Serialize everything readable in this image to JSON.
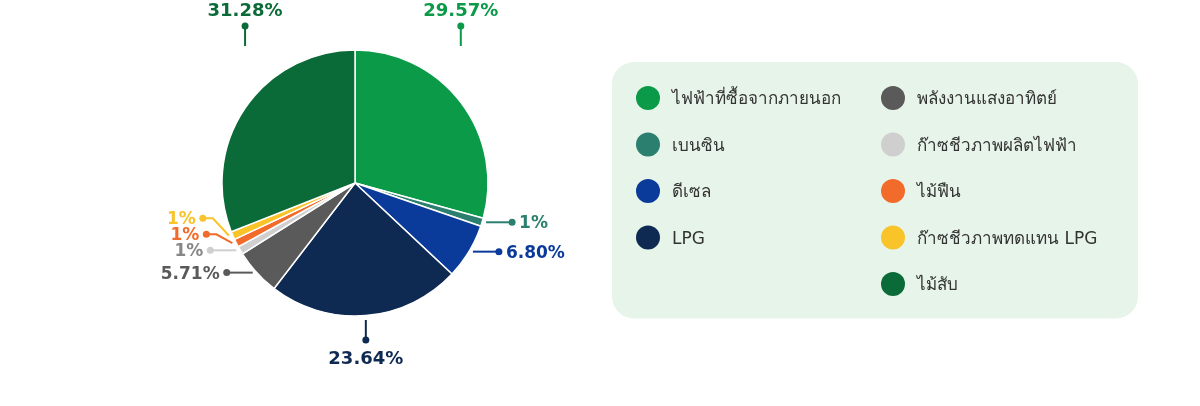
{
  "chart_data": {
    "type": "pie",
    "categories": [
      "ไฟฟ้าที่ซื้อจากภายนอก",
      "เบนซิน",
      "ดีเซล",
      "LPG",
      "พลังงานแสงอาทิตย์",
      "ก๊าซชีวภาพผลิตไฟฟ้า",
      "ไม้ฟืน",
      "ก๊าซชีวภาพทดแทน LPG",
      "ไม้สับ"
    ],
    "values": [
      29.57,
      1,
      6.8,
      23.64,
      5.71,
      1,
      1,
      1,
      31.28
    ],
    "value_labels": [
      "29.57%",
      "1%",
      "6.80%",
      "23.64%",
      "5.71%",
      "1%",
      "1%",
      "1%",
      "31.28%"
    ],
    "colors": [
      "#0a9a48",
      "#2a7f6f",
      "#0a3a9a",
      "#0f2a52",
      "#5a5a5a",
      "#cfcfcf",
      "#f26b2b",
      "#f9c32a",
      "#0b6b38"
    ],
    "legend": "right"
  }
}
